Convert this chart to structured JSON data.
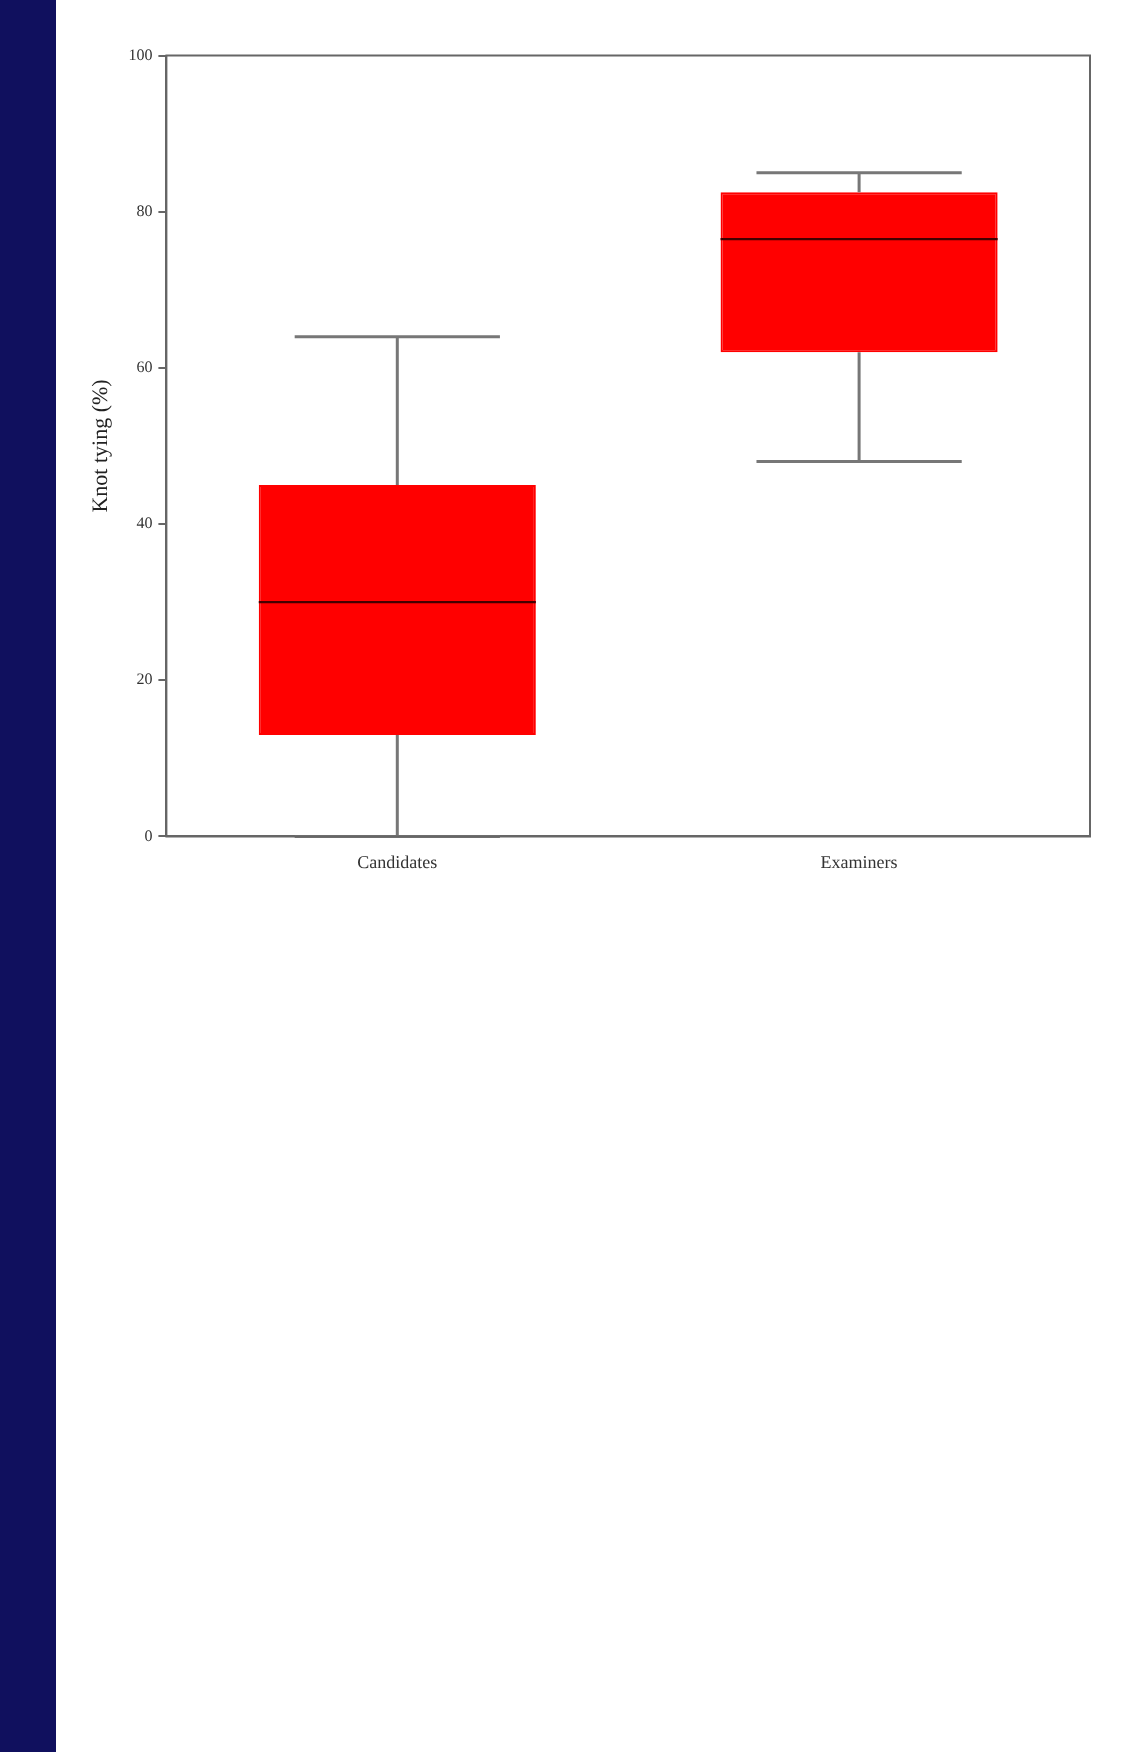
{
  "chart_data": {
    "type": "box",
    "ylabel": "Knot tying (%)",
    "categories": [
      "Candidates",
      "Examiners"
    ],
    "color": "#ff0000",
    "ylim": [
      0,
      100
    ],
    "yticks": [
      0,
      20,
      40,
      60,
      80,
      100
    ],
    "grid": false,
    "legend": false,
    "boxes": [
      {
        "low": 0,
        "q1": 13,
        "median": 30,
        "q3": 45,
        "high": 64
      },
      {
        "low": 48,
        "q1": 62,
        "median": 76.5,
        "q3": 82.5,
        "high": 85
      }
    ]
  }
}
